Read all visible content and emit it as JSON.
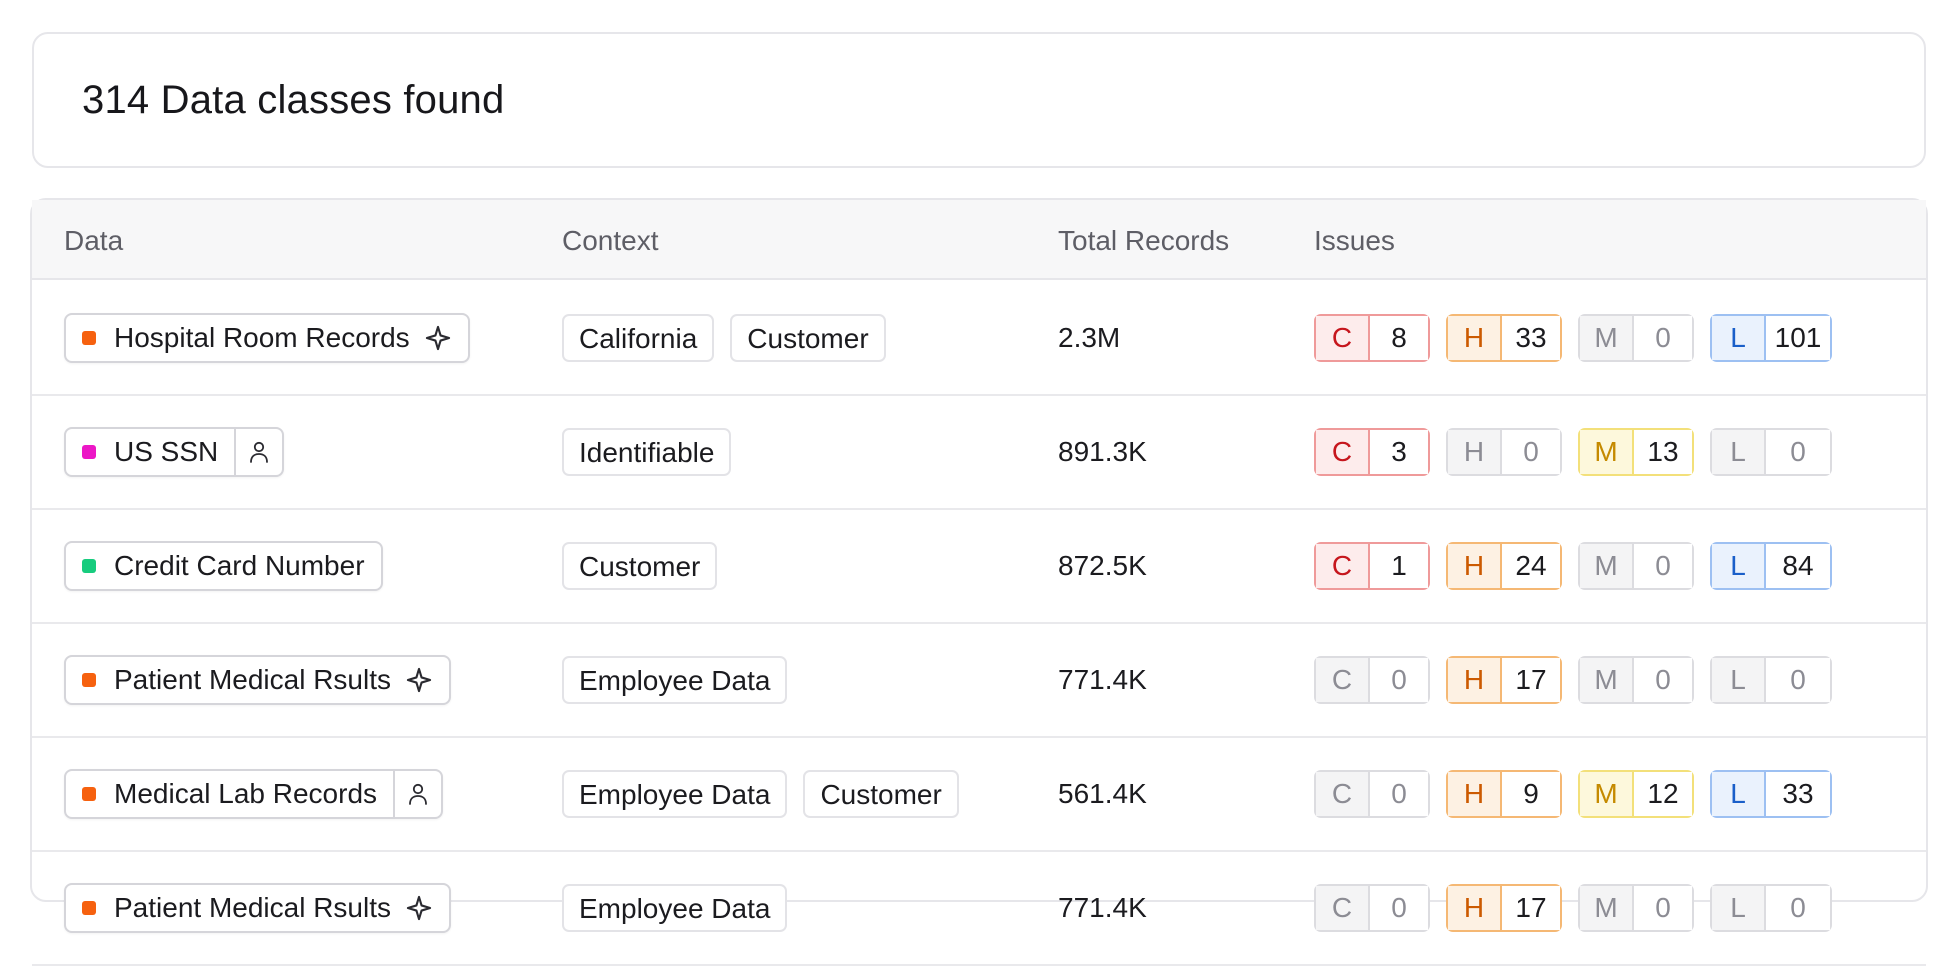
{
  "summary": {
    "title": "314 Data classes found"
  },
  "table": {
    "columns": {
      "data": "Data",
      "context": "Context",
      "total": "Total Records",
      "issues": "Issues"
    },
    "rows": [
      {
        "data": "Hospital Room Records",
        "dot_color": "#f6610f",
        "icon": "sparkle-icon",
        "context": [
          "California",
          "Customer"
        ],
        "total": "2.3M",
        "issues": [
          {
            "letter": "C",
            "count": "8",
            "active": true
          },
          {
            "letter": "H",
            "count": "33",
            "active": true
          },
          {
            "letter": "M",
            "count": "0",
            "active": false
          },
          {
            "letter": "L",
            "count": "101",
            "active": true
          }
        ]
      },
      {
        "data": "US SSN",
        "dot_color": "#ec17c6",
        "icon": "person-icon",
        "context": [
          "Identifiable"
        ],
        "total": "891.3K",
        "issues": [
          {
            "letter": "C",
            "count": "3",
            "active": true
          },
          {
            "letter": "H",
            "count": "0",
            "active": false
          },
          {
            "letter": "M",
            "count": "13",
            "active": true
          },
          {
            "letter": "L",
            "count": "0",
            "active": false
          }
        ]
      },
      {
        "data": "Credit Card Number",
        "dot_color": "#17cc7e",
        "icon": "",
        "context": [
          "Customer"
        ],
        "total": "872.5K",
        "issues": [
          {
            "letter": "C",
            "count": "1",
            "active": true
          },
          {
            "letter": "H",
            "count": "24",
            "active": true
          },
          {
            "letter": "M",
            "count": "0",
            "active": false
          },
          {
            "letter": "L",
            "count": "84",
            "active": true
          }
        ]
      },
      {
        "data": "Patient Medical Rsults",
        "dot_color": "#f6610f",
        "icon": "sparkle-icon",
        "context": [
          "Employee Data"
        ],
        "total": "771.4K",
        "issues": [
          {
            "letter": "C",
            "count": "0",
            "active": false
          },
          {
            "letter": "H",
            "count": "17",
            "active": true
          },
          {
            "letter": "M",
            "count": "0",
            "active": false
          },
          {
            "letter": "L",
            "count": "0",
            "active": false
          }
        ]
      },
      {
        "data": "Medical Lab Records",
        "dot_color": "#f6610f",
        "icon": "person-icon",
        "context": [
          "Employee Data",
          "Customer"
        ],
        "total": "561.4K",
        "issues": [
          {
            "letter": "C",
            "count": "0",
            "active": false
          },
          {
            "letter": "H",
            "count": "9",
            "active": true
          },
          {
            "letter": "M",
            "count": "12",
            "active": true
          },
          {
            "letter": "L",
            "count": "33",
            "active": true
          }
        ]
      },
      {
        "data": "Patient Medical Rsults",
        "dot_color": "#f6610f",
        "icon": "sparkle-icon",
        "context": [
          "Employee Data"
        ],
        "total": "771.4K",
        "issues": [
          {
            "letter": "C",
            "count": "0",
            "active": false
          },
          {
            "letter": "H",
            "count": "17",
            "active": true
          },
          {
            "letter": "M",
            "count": "0",
            "active": false
          },
          {
            "letter": "L",
            "count": "0",
            "active": false
          }
        ]
      }
    ]
  }
}
